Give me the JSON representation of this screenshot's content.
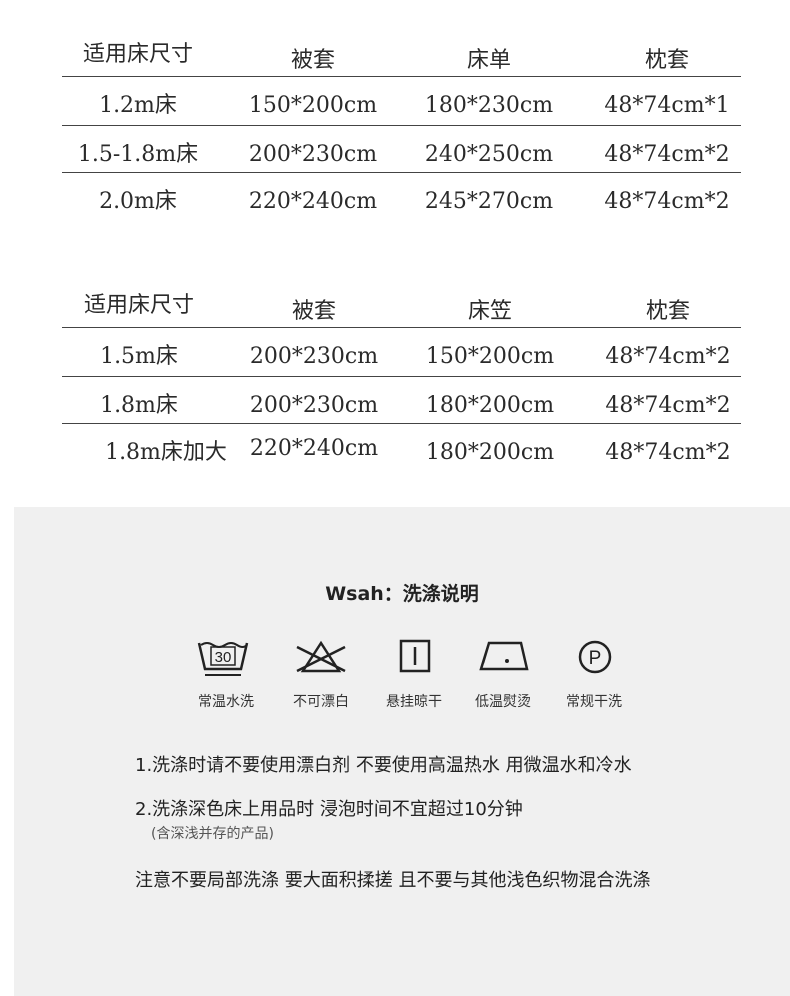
{
  "table1": {
    "headers": [
      "适用床尺寸",
      "被套",
      "床单",
      "枕套"
    ],
    "rows": [
      [
        "1.2m床",
        "150*200cm",
        "180*230cm",
        "48*74cm*1"
      ],
      [
        "1.5-1.8m床",
        "200*230cm",
        "240*250cm",
        "48*74cm*2"
      ],
      [
        "2.0m床",
        "220*240cm",
        "245*270cm",
        "48*74cm*2"
      ]
    ]
  },
  "table2": {
    "headers": [
      "适用床尺寸",
      "被套",
      "床笠",
      "枕套"
    ],
    "rows": [
      [
        "1.5m床",
        "200*230cm",
        "150*200cm",
        "48*74cm*2"
      ],
      [
        "1.8m床",
        "200*230cm",
        "180*200cm",
        "48*74cm*2"
      ],
      [
        "1.8m床加大",
        "220*240cm",
        "180*200cm",
        "48*74cm*2"
      ]
    ]
  },
  "wash": {
    "title": "Wsah：洗涤说明",
    "icons": [
      {
        "icon": "wash-30-icon",
        "label": "常温水洗",
        "temp": "30"
      },
      {
        "icon": "no-bleach-icon",
        "label": "不可漂白"
      },
      {
        "icon": "hang-dry-icon",
        "label": "悬挂晾干"
      },
      {
        "icon": "low-iron-icon",
        "label": "低温熨烫"
      },
      {
        "icon": "dry-clean-icon",
        "label": "常规干洗",
        "letter": "P"
      }
    ],
    "note1": "1.洗涤时请不要使用漂白剂 不要使用高温热水 用微温水和冷水",
    "note2": "2.洗涤深色床上用品时 浸泡时间不宜超过10分钟",
    "note2_sub": "(含深浅并存的产品)",
    "note3": "注意不要局部洗涤 要大面积揉搓 且不要与其他浅色织物混合洗涤"
  }
}
